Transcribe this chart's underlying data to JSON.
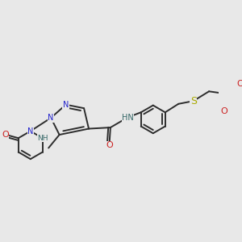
{
  "background_color": "#e8e8e8",
  "bond_color": "#2d2d2d",
  "bond_width": 1.4,
  "figsize": [
    3.0,
    3.0
  ],
  "dpi": 100,
  "N_color": "#2222cc",
  "O_color": "#cc2222",
  "S_color": "#aaaa00",
  "H_color": "#336666",
  "label_fontsize": 7.0,
  "xlim": [
    -1.5,
    7.5
  ],
  "ylim": [
    -3.5,
    3.5
  ]
}
